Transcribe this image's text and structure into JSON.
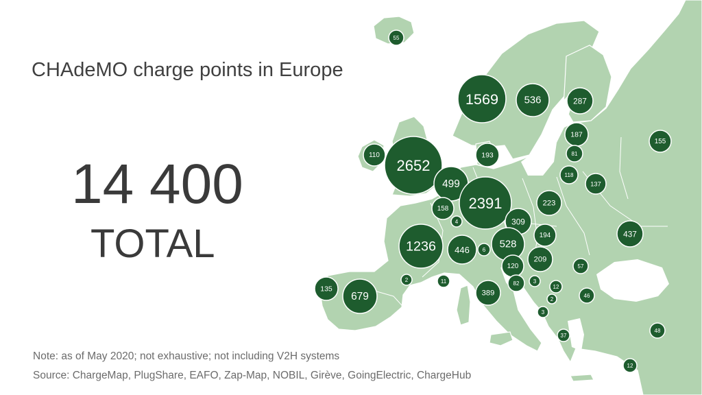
{
  "title": "CHAdeMO charge points in Europe",
  "total": {
    "number": "14 400",
    "label": "TOTAL"
  },
  "note": "Note: as of May 2020; not exhaustive; not including V2H systems",
  "source": "Source: ChargeMap, PlugShare, EAFO, Zap-Map, NOBIL, Girève, GoingElectric, ChargeHub",
  "colors": {
    "land": "#b2d3b0",
    "bubble": "#1e5c2e",
    "text": "#404040",
    "note": "#6b6b6b"
  },
  "markers": [
    {
      "label": "55"
    },
    {
      "label": "1569"
    },
    {
      "label": "536"
    },
    {
      "label": "287"
    },
    {
      "label": "187"
    },
    {
      "label": "81"
    },
    {
      "label": "155"
    },
    {
      "label": "110"
    },
    {
      "label": "2652"
    },
    {
      "label": "193"
    },
    {
      "label": "499"
    },
    {
      "label": "118"
    },
    {
      "label": "137"
    },
    {
      "label": "2391"
    },
    {
      "label": "223"
    },
    {
      "label": "158"
    },
    {
      "label": "4"
    },
    {
      "label": "309"
    },
    {
      "label": "194"
    },
    {
      "label": "437"
    },
    {
      "label": "1236"
    },
    {
      "label": "446"
    },
    {
      "label": "6"
    },
    {
      "label": "528"
    },
    {
      "label": "209"
    },
    {
      "label": "120"
    },
    {
      "label": "57"
    },
    {
      "label": "2"
    },
    {
      "label": "11"
    },
    {
      "label": "82"
    },
    {
      "label": "3"
    },
    {
      "label": "12"
    },
    {
      "label": "135"
    },
    {
      "label": "679"
    },
    {
      "label": "389"
    },
    {
      "label": "2"
    },
    {
      "label": "46"
    },
    {
      "label": "3"
    },
    {
      "label": "37"
    },
    {
      "label": "48"
    },
    {
      "label": "12"
    }
  ]
}
